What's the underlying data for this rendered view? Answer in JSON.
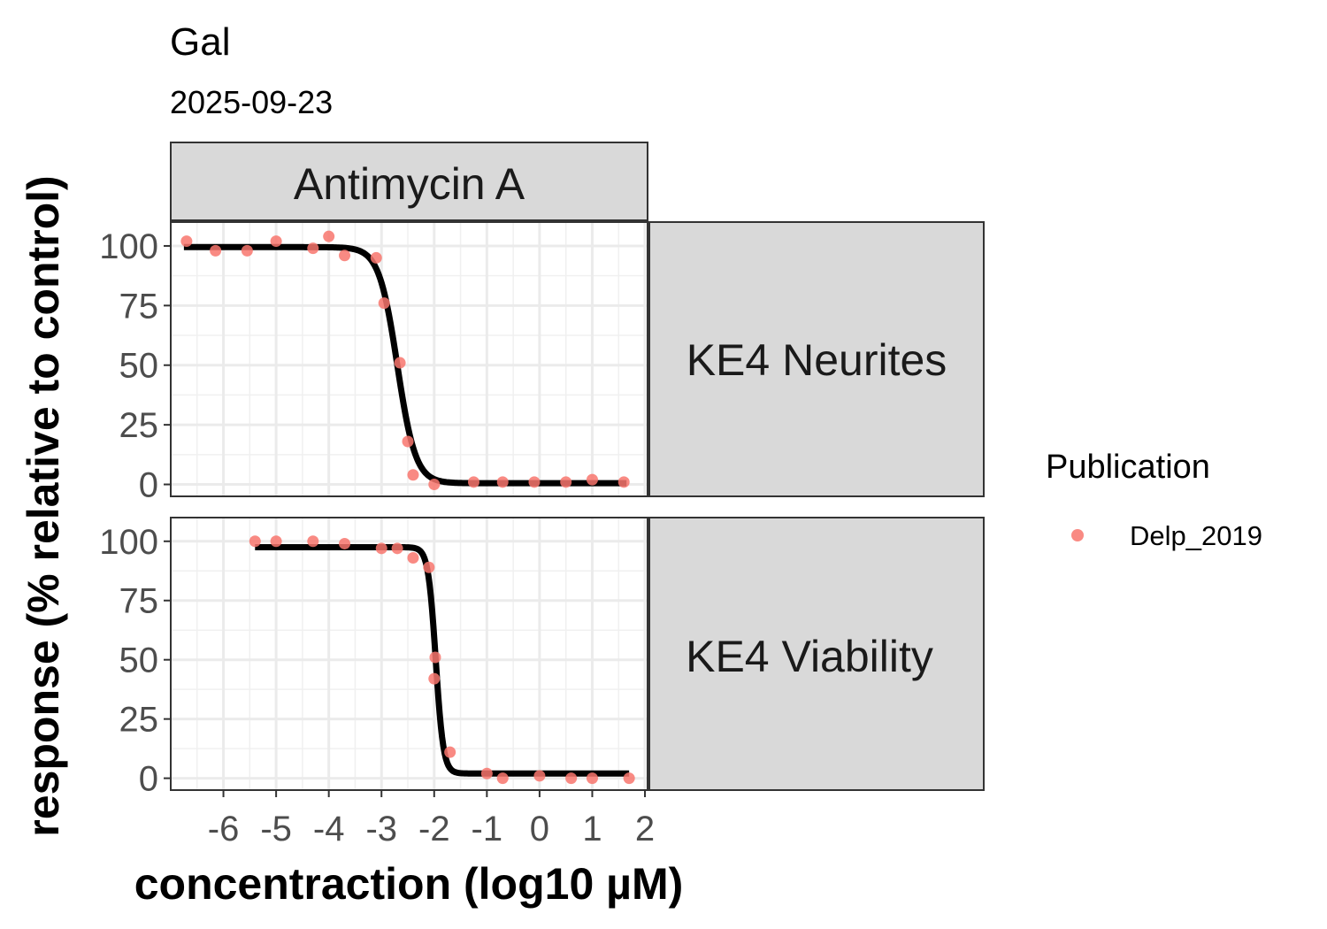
{
  "chart_data": {
    "type": "scatter",
    "title": "Gal",
    "subtitle": "2025-09-23",
    "xlabel": "concentraction (log10 µM)",
    "ylabel": "response (% relative to control)",
    "xlim": [
      -7.0,
      2.05
    ],
    "ylim": [
      -5,
      110
    ],
    "x_ticks": [
      -6,
      -5,
      -4,
      -3,
      -2,
      -1,
      0,
      1,
      2
    ],
    "x_tick_labels": [
      "-6",
      "-5",
      "-4",
      "-3",
      "-2",
      "-1",
      "0",
      "1",
      "2"
    ],
    "y_ticks": [
      0,
      25,
      50,
      75,
      100
    ],
    "y_tick_labels": [
      "0",
      "25",
      "50",
      "75",
      "100"
    ],
    "grid": true,
    "column_strip": "Antimycin A",
    "legend": {
      "title": "Publication",
      "placement": "right",
      "entries": [
        {
          "label": "Delp_2019",
          "color": "#F8766D"
        }
      ]
    },
    "point_color": "#F8766D",
    "line_color": "#000000",
    "panels": [
      {
        "strip": "KE4 Neurites",
        "points": [
          {
            "x": -6.7,
            "y": 102
          },
          {
            "x": -6.15,
            "y": 98
          },
          {
            "x": -5.55,
            "y": 98
          },
          {
            "x": -5.0,
            "y": 102
          },
          {
            "x": -4.3,
            "y": 99
          },
          {
            "x": -4.0,
            "y": 104
          },
          {
            "x": -3.7,
            "y": 96
          },
          {
            "x": -3.1,
            "y": 95
          },
          {
            "x": -2.95,
            "y": 76
          },
          {
            "x": -2.65,
            "y": 51
          },
          {
            "x": -2.5,
            "y": 18
          },
          {
            "x": -2.4,
            "y": 4
          },
          {
            "x": -2.0,
            "y": 0
          },
          {
            "x": -1.25,
            "y": 1
          },
          {
            "x": -0.7,
            "y": 1
          },
          {
            "x": -0.1,
            "y": 1
          },
          {
            "x": 0.5,
            "y": 1
          },
          {
            "x": 1.0,
            "y": 2
          },
          {
            "x": 1.6,
            "y": 1
          }
        ],
        "curve": {
          "top": 99.5,
          "bottom": 0.5,
          "log_ec50": -2.7,
          "hill": 2.5,
          "x_start": -6.75,
          "x_end": 1.65
        }
      },
      {
        "strip": "KE4 Viability",
        "points": [
          {
            "x": -5.4,
            "y": 100
          },
          {
            "x": -5.0,
            "y": 100
          },
          {
            "x": -4.3,
            "y": 100
          },
          {
            "x": -3.7,
            "y": 99
          },
          {
            "x": -3.0,
            "y": 97
          },
          {
            "x": -2.7,
            "y": 97
          },
          {
            "x": -2.4,
            "y": 93
          },
          {
            "x": -2.1,
            "y": 89
          },
          {
            "x": -1.98,
            "y": 51
          },
          {
            "x": -2.0,
            "y": 42
          },
          {
            "x": -1.7,
            "y": 11
          },
          {
            "x": -1.0,
            "y": 2
          },
          {
            "x": -0.7,
            "y": 0
          },
          {
            "x": 0.0,
            "y": 1
          },
          {
            "x": 0.6,
            "y": 0
          },
          {
            "x": 1.0,
            "y": 0
          },
          {
            "x": 1.7,
            "y": 0
          }
        ],
        "curve": {
          "top": 97.5,
          "bottom": 2.0,
          "log_ec50": -1.97,
          "hill": 6,
          "x_start": -5.4,
          "x_end": 1.7
        }
      }
    ]
  }
}
